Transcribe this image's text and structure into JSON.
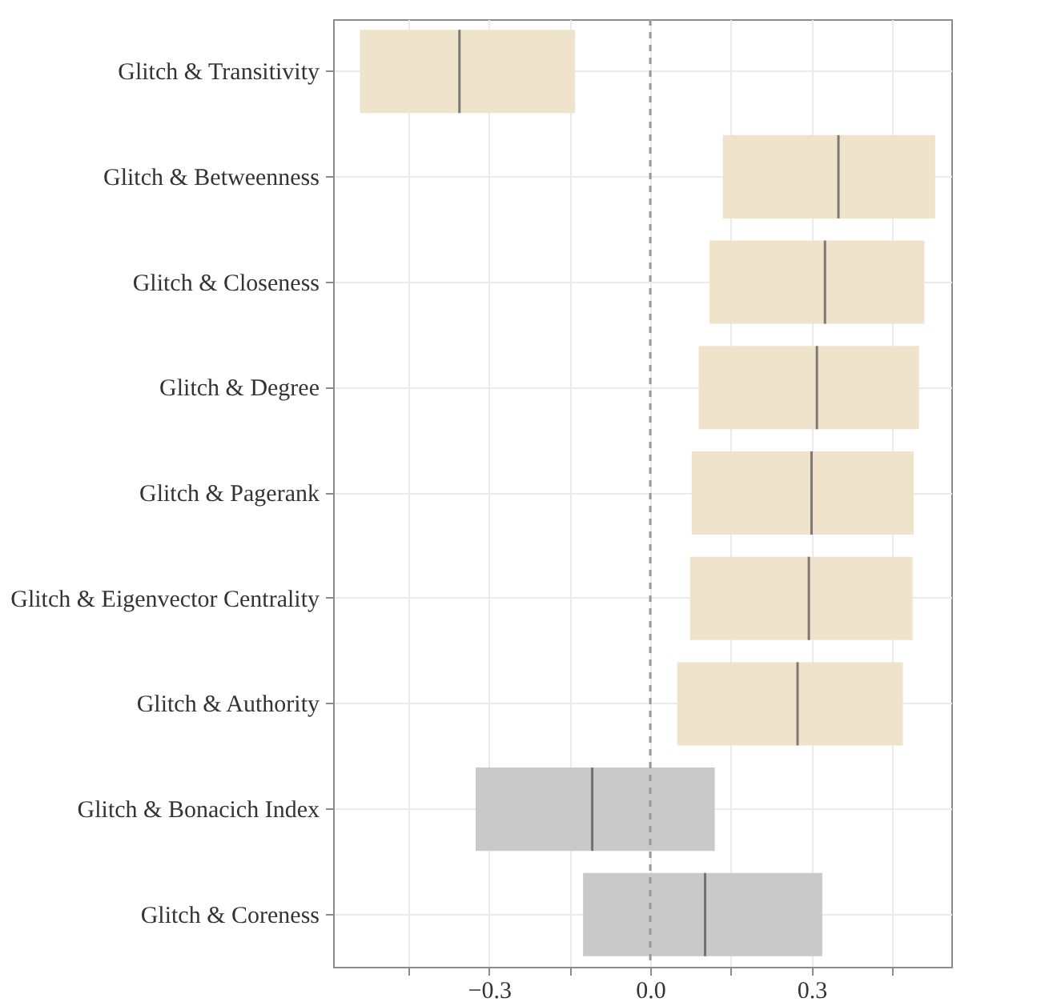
{
  "chart_data": {
    "type": "box",
    "orientation": "horizontal",
    "categories": [
      "Glitch & Transitivity",
      "Glitch & Betweenness",
      "Glitch & Closeness",
      "Glitch & Degree",
      "Glitch & Pagerank",
      "Glitch & Eigenvector Centrality",
      "Glitch & Authority",
      "Glitch & Bonacich Index",
      "Glitch & Coreness"
    ],
    "boxes": [
      {
        "low": -0.54,
        "q1": -0.54,
        "median": -0.355,
        "q3": -0.14,
        "high": -0.14
      },
      {
        "low": 0.135,
        "q1": 0.135,
        "median": 0.35,
        "q3": 0.53,
        "high": 0.53
      },
      {
        "low": 0.11,
        "q1": 0.11,
        "median": 0.325,
        "q3": 0.51,
        "high": 0.51
      },
      {
        "low": 0.09,
        "q1": 0.09,
        "median": 0.31,
        "q3": 0.5,
        "high": 0.5
      },
      {
        "low": 0.077,
        "q1": 0.077,
        "median": 0.3,
        "q3": 0.49,
        "high": 0.49
      },
      {
        "low": 0.074,
        "q1": 0.074,
        "median": 0.295,
        "q3": 0.488,
        "high": 0.488
      },
      {
        "low": 0.05,
        "q1": 0.05,
        "median": 0.274,
        "q3": 0.47,
        "high": 0.47
      },
      {
        "low": -0.325,
        "q1": -0.325,
        "median": -0.108,
        "q3": 0.12,
        "high": 0.12
      },
      {
        "low": -0.125,
        "q1": -0.125,
        "median": 0.102,
        "q3": 0.32,
        "high": 0.32
      }
    ],
    "colors": [
      "#f0e3cc",
      "#f0e3cc",
      "#f0e3cc",
      "#f0e3cc",
      "#f0e3cc",
      "#f0e3cc",
      "#f0e3cc",
      "#c9c9c9",
      "#c9c9c9"
    ],
    "xlim": [
      -0.59,
      0.56
    ],
    "xticks": [
      {
        "value": -0.45,
        "label": null
      },
      {
        "value": -0.3,
        "label": "−0.3"
      },
      {
        "value": -0.15,
        "label": null
      },
      {
        "value": 0,
        "label": "0.0"
      },
      {
        "value": 0.15,
        "label": null
      },
      {
        "value": 0.3,
        "label": "0.3"
      },
      {
        "value": 0.45,
        "label": null
      }
    ],
    "ref_lines": [
      {
        "axis": "x",
        "value": 0,
        "color": "#999999",
        "line_style": "dashed"
      }
    ],
    "grid": true
  }
}
